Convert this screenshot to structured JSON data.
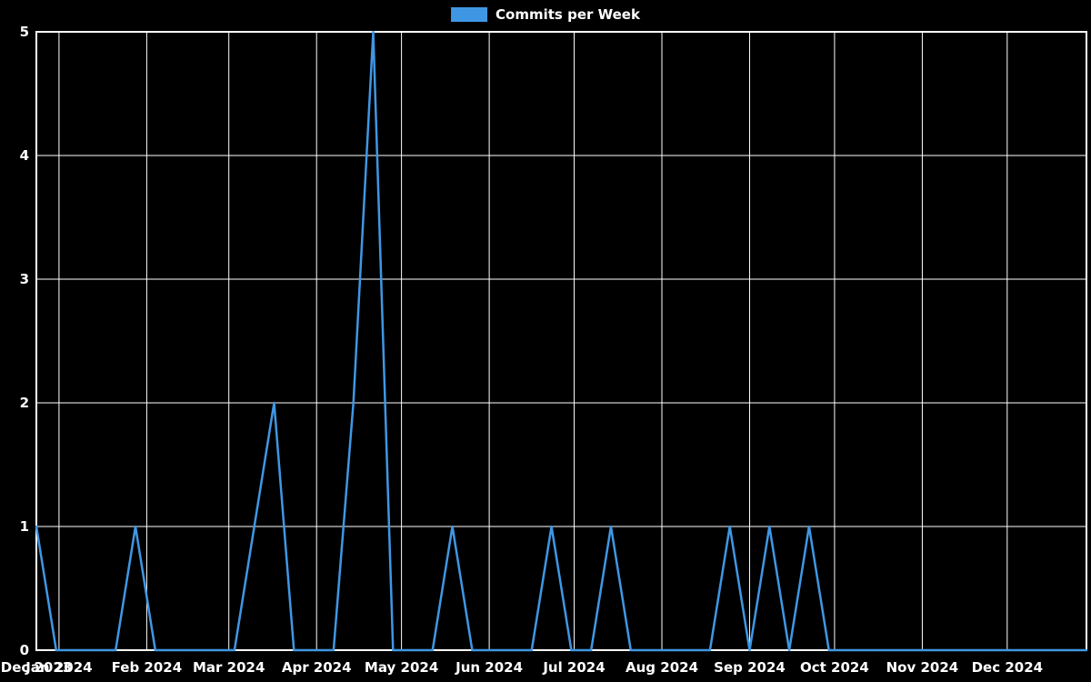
{
  "colors": {
    "background": "#000000",
    "grid": "#ffffff",
    "axis": "#ffffff",
    "text": "#ffffff",
    "line": "#3f97e4"
  },
  "chart_data": {
    "type": "line",
    "title": "Commits per Week",
    "grid": true,
    "legend_position": "top-center",
    "ylim": [
      0,
      5
    ],
    "y_ticks": [
      0,
      1,
      2,
      3,
      4,
      5
    ],
    "x_ticks": [
      {
        "date": "2023-12-24",
        "label": "Dec 2023"
      },
      {
        "date": "2024-01-01",
        "label": "Jan 2024"
      },
      {
        "date": "2024-02-01",
        "label": "Feb 2024"
      },
      {
        "date": "2024-03-01",
        "label": "Mar 2024"
      },
      {
        "date": "2024-04-01",
        "label": "Apr 2024"
      },
      {
        "date": "2024-05-01",
        "label": "May 2024"
      },
      {
        "date": "2024-06-01",
        "label": "Jun 2024"
      },
      {
        "date": "2024-07-01",
        "label": "Jul 2024"
      },
      {
        "date": "2024-08-01",
        "label": "Aug 2024"
      },
      {
        "date": "2024-09-01",
        "label": "Sep 2024"
      },
      {
        "date": "2024-10-01",
        "label": "Oct 2024"
      },
      {
        "date": "2024-11-01",
        "label": "Nov 2024"
      },
      {
        "date": "2024-12-01",
        "label": "Dec 2024"
      }
    ],
    "x": [
      "2023-12-24",
      "2023-12-31",
      "2024-01-07",
      "2024-01-14",
      "2024-01-21",
      "2024-01-28",
      "2024-02-04",
      "2024-02-11",
      "2024-02-18",
      "2024-02-25",
      "2024-03-03",
      "2024-03-10",
      "2024-03-17",
      "2024-03-24",
      "2024-03-31",
      "2024-04-07",
      "2024-04-14",
      "2024-04-21",
      "2024-04-28",
      "2024-05-05",
      "2024-05-12",
      "2024-05-19",
      "2024-05-26",
      "2024-06-02",
      "2024-06-09",
      "2024-06-16",
      "2024-06-23",
      "2024-06-30",
      "2024-07-07",
      "2024-07-14",
      "2024-07-21",
      "2024-07-28",
      "2024-08-04",
      "2024-08-11",
      "2024-08-18",
      "2024-08-25",
      "2024-09-01",
      "2024-09-08",
      "2024-09-15",
      "2024-09-22",
      "2024-09-29",
      "2024-10-06",
      "2024-10-13",
      "2024-10-20",
      "2024-10-27",
      "2024-11-03",
      "2024-11-10",
      "2024-11-17",
      "2024-11-24",
      "2024-12-01",
      "2024-12-08",
      "2024-12-15",
      "2024-12-22",
      "2024-12-29"
    ],
    "series": [
      {
        "name": "Commits per Week",
        "color": "#3f97e4",
        "values": [
          1,
          0,
          0,
          0,
          0,
          1,
          0,
          0,
          0,
          0,
          0,
          1,
          2,
          0,
          0,
          0,
          2,
          5,
          0,
          0,
          0,
          1,
          0,
          0,
          0,
          0,
          1,
          0,
          0,
          1,
          0,
          0,
          0,
          0,
          0,
          1,
          0,
          1,
          0,
          1,
          0,
          0,
          0,
          0,
          0,
          0,
          0,
          0,
          0,
          0,
          0,
          0,
          0,
          0
        ]
      }
    ]
  }
}
